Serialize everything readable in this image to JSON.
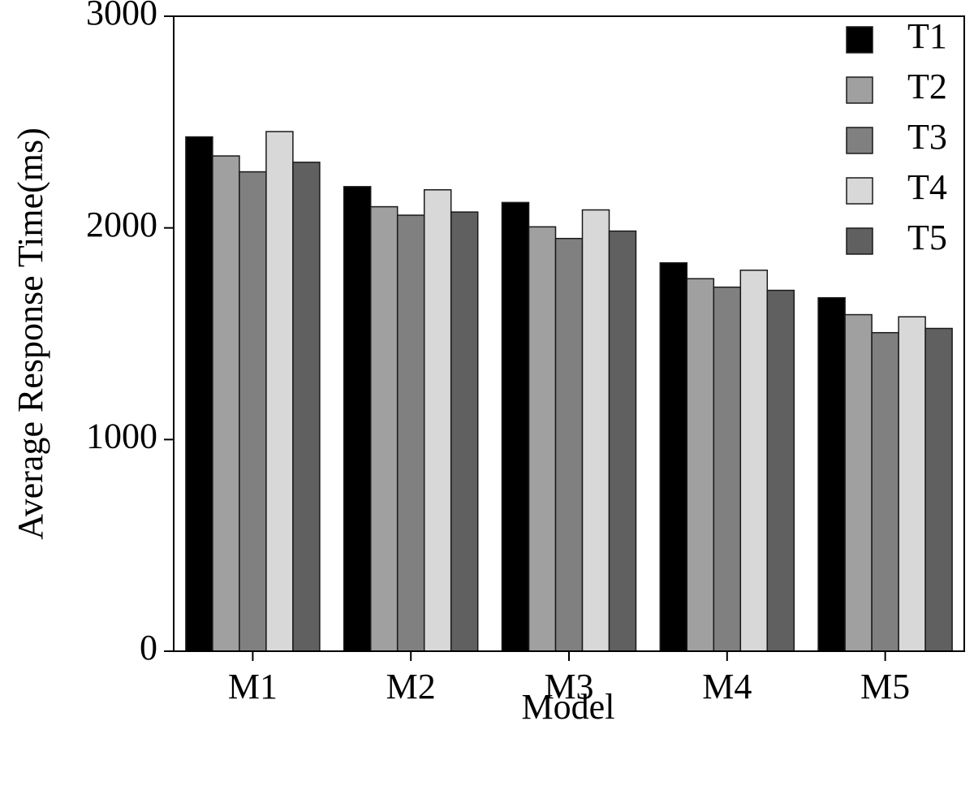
{
  "chart_data": {
    "type": "bar",
    "title": "",
    "xlabel": "Model",
    "ylabel": "Average Response Time(ms)",
    "categories": [
      "M1",
      "M2",
      "M3",
      "M4",
      "M5"
    ],
    "ylim": [
      0,
      3000
    ],
    "yticks": [
      0,
      1000,
      2000,
      3000
    ],
    "grid": false,
    "legend_position": "top-right",
    "series": [
      {
        "name": "T1",
        "color": "#000000",
        "values": [
          2430,
          2195,
          2120,
          1835,
          1670
        ]
      },
      {
        "name": "T2",
        "color": "#a0a0a0",
        "values": [
          2340,
          2100,
          2005,
          1760,
          1590
        ]
      },
      {
        "name": "T3",
        "color": "#808080",
        "values": [
          2265,
          2060,
          1950,
          1720,
          1505
        ]
      },
      {
        "name": "T4",
        "color": "#d8d8d8",
        "values": [
          2455,
          2180,
          2085,
          1800,
          1580
        ]
      },
      {
        "name": "T5",
        "color": "#606060",
        "values": [
          2310,
          2075,
          1985,
          1705,
          1525
        ]
      }
    ]
  }
}
